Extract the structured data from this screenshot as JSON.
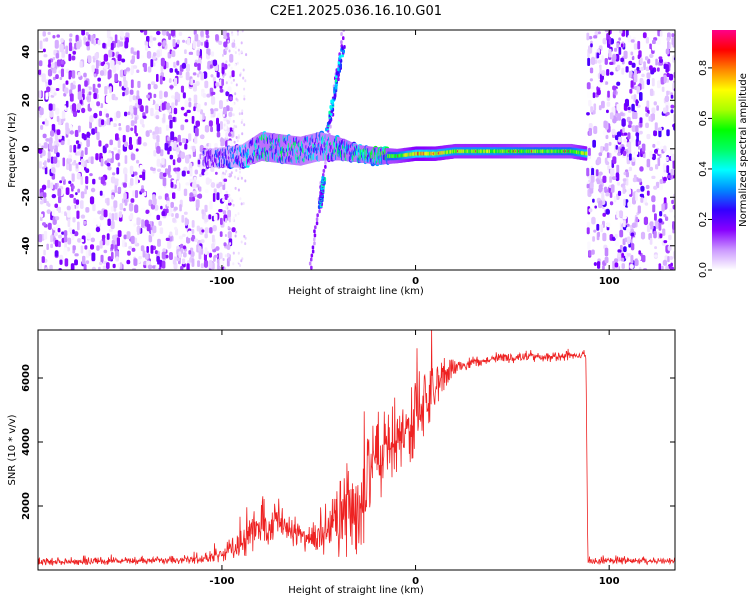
{
  "title": "C2E1.2025.036.16.10.G01",
  "chart_data": [
    {
      "type": "heatmap",
      "xlabel": "Height of straight line (km)",
      "ylabel": "Frequency (Hz)",
      "xlim": [
        -195,
        134
      ],
      "ylim": [
        -50,
        49
      ],
      "x_ticks": [
        -100,
        0,
        100
      ],
      "x_tick_labels": [
        "-100",
        "0",
        "100"
      ],
      "y_ticks": [
        -40,
        -20,
        0,
        20,
        40
      ],
      "y_tick_labels": [
        "-40",
        "-20",
        "0",
        "20",
        "40"
      ],
      "colorbar": {
        "label": "Normalized spectral amplitude",
        "range": [
          0,
          0.95
        ],
        "ticks": [
          0.0,
          0.2,
          0.4,
          0.6,
          0.8
        ],
        "tick_labels": [
          "0.0",
          "0.2",
          "0.4",
          "0.6",
          "0.8"
        ],
        "colormap": [
          "#ffffff",
          "#cc99ff",
          "#8800ff",
          "#3300ff",
          "#0088ff",
          "#00ffff",
          "#00ff66",
          "#00ff00",
          "#aaff00",
          "#ffff00",
          "#ff8800",
          "#ff0000",
          "#ff0088"
        ]
      },
      "noise_regions": [
        {
          "x_range": [
            -195,
            -95
          ],
          "amplitude": 0.12
        },
        {
          "x_range": [
            88,
            134
          ],
          "amplitude": 0.14
        }
      ],
      "signal_band": {
        "x": [
          -110,
          -90,
          -80,
          -70,
          -60,
          -50,
          -40,
          -30,
          -20,
          -10,
          0,
          10,
          20,
          40,
          60,
          80,
          88
        ],
        "center_hz": [
          -4,
          -3,
          1,
          0,
          -1,
          1,
          0,
          -2,
          -3,
          -3,
          -2,
          -2,
          -1,
          -1,
          -1,
          -1,
          -2
        ],
        "half_width_hz": [
          3,
          4,
          5,
          5,
          5,
          5,
          4,
          3,
          3,
          2.5,
          2.5,
          2.5,
          2.5,
          2.5,
          2.5,
          2.5,
          2.5
        ],
        "amplitude": [
          0.2,
          0.3,
          0.4,
          0.4,
          0.38,
          0.35,
          0.4,
          0.4,
          0.45,
          0.5,
          0.65,
          0.6,
          0.55,
          0.55,
          0.5,
          0.5,
          0.6
        ]
      },
      "streaks": [
        {
          "from": [
            -55,
            -49
          ],
          "to": [
            -38,
            49
          ],
          "amplitude": 0.12
        },
        {
          "from": [
            -46,
            8
          ],
          "to": [
            -38,
            42
          ],
          "amplitude": 0.3
        },
        {
          "from": [
            -50,
            -24
          ],
          "to": [
            -48,
            -12
          ],
          "amplitude": 0.3
        }
      ]
    },
    {
      "type": "line",
      "xlabel": "Height of straight line (km)",
      "ylabel": "SNR (10 * v/v)",
      "xlim": [
        -195,
        134
      ],
      "ylim": [
        0,
        7500
      ],
      "x_ticks": [
        -100,
        0,
        100
      ],
      "x_tick_labels": [
        "-100",
        "0",
        "100"
      ],
      "y_ticks": [
        2000,
        4000,
        6000
      ],
      "y_tick_labels": [
        "2000",
        "4000",
        "6000"
      ],
      "series": [
        {
          "name": "SNR",
          "color": "#ee2222",
          "x": [
            -195,
            -160,
            -130,
            -110,
            -100,
            -90,
            -85,
            -80,
            -75,
            -70,
            -65,
            -60,
            -55,
            -50,
            -45,
            -40,
            -35,
            -30,
            -25,
            -20,
            -15,
            -10,
            -5,
            0,
            5,
            10,
            15,
            20,
            25,
            30,
            35,
            40,
            50,
            60,
            70,
            80,
            88,
            89,
            134
          ],
          "values": [
            250,
            280,
            300,
            350,
            500,
            800,
            1100,
            1500,
            1300,
            1600,
            1250,
            1100,
            900,
            1000,
            1300,
            1400,
            1800,
            2200,
            2700,
            3200,
            3700,
            4000,
            4300,
            4700,
            5200,
            5700,
            6100,
            6300,
            6400,
            6500,
            6500,
            6600,
            6600,
            6650,
            6650,
            6700,
            6700,
            280,
            280
          ],
          "noise": [
            120,
            120,
            130,
            150,
            250,
            500,
            600,
            700,
            700,
            700,
            600,
            500,
            450,
            700,
            1000,
            1300,
            1500,
            1700,
            1700,
            1700,
            1500,
            1500,
            1300,
            1200,
            900,
            700,
            450,
            300,
            200,
            180,
            150,
            150,
            150,
            150,
            150,
            150,
            150,
            110,
            110
          ]
        }
      ]
    }
  ]
}
